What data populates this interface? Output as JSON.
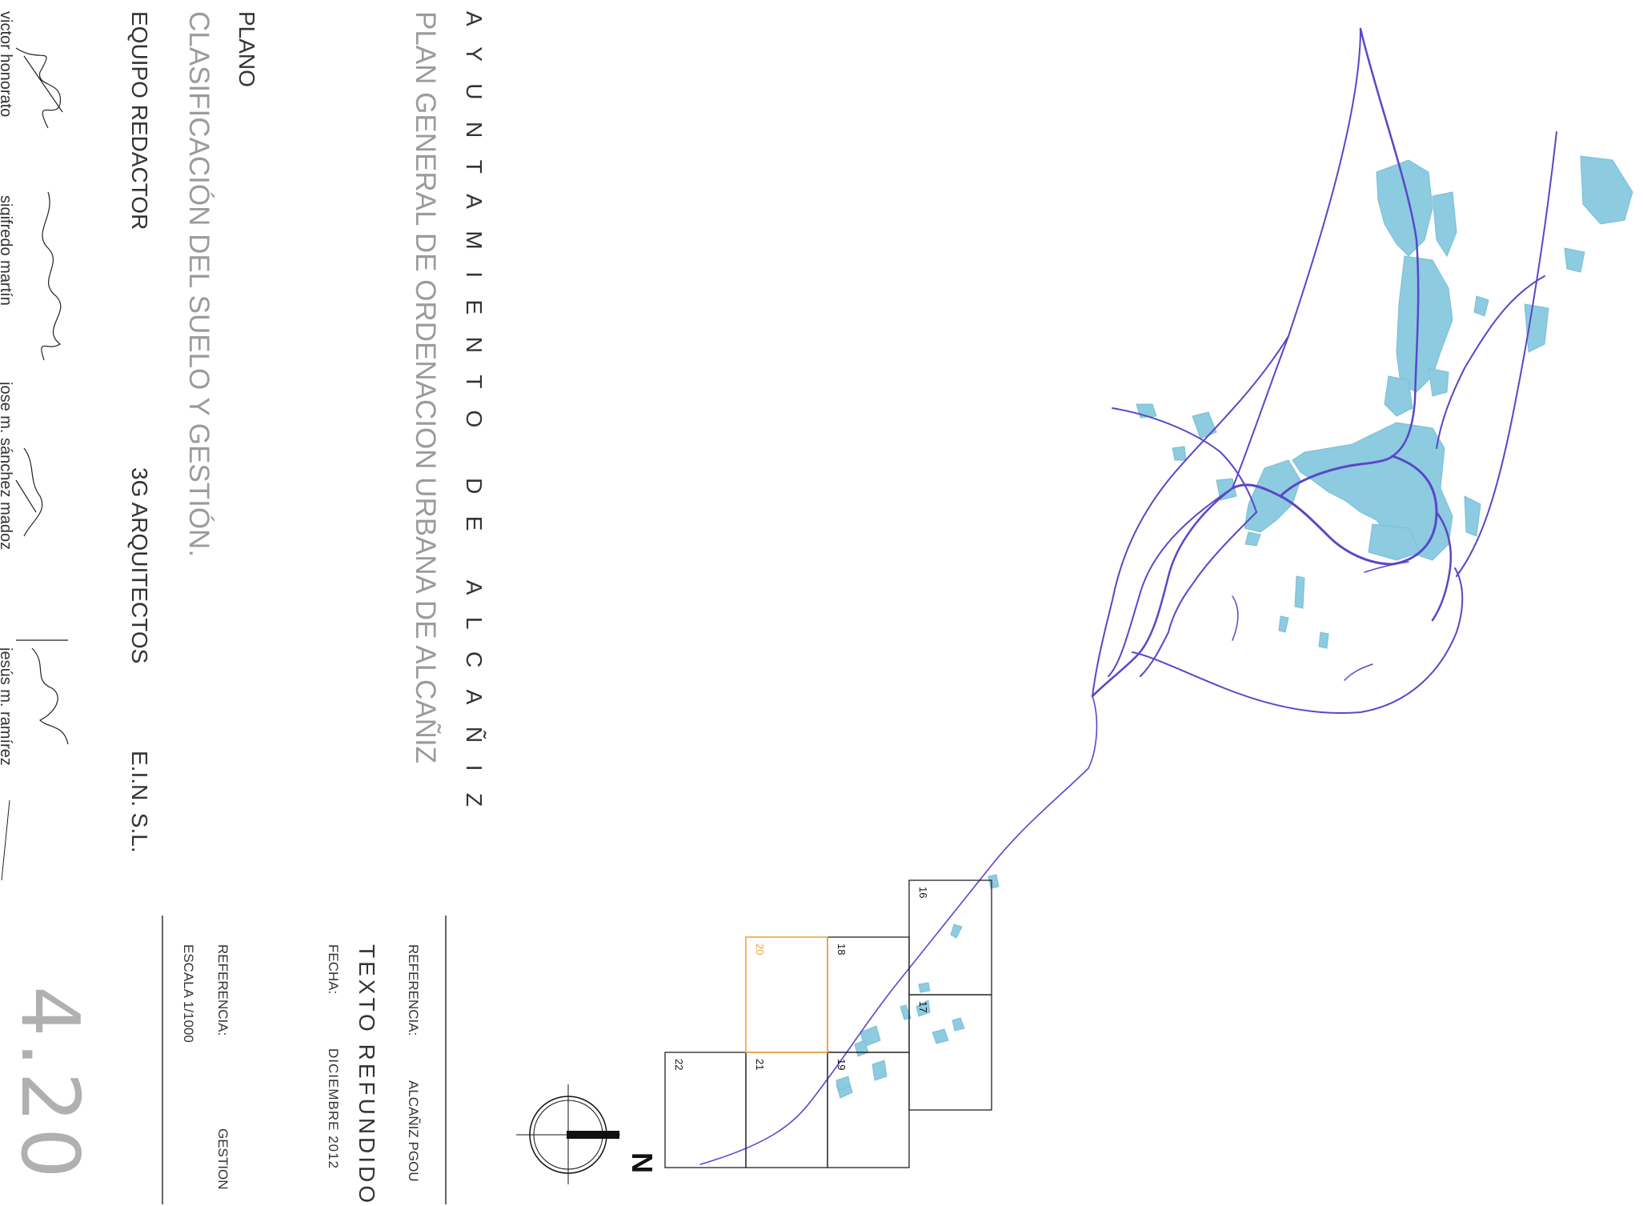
{
  "title_block": {
    "municipality": "AYUNTAMIENTO DE ALCAÑIZ",
    "project": "PLAN GENERAL DE ORDENACION URBANA DE ALCAÑIZ",
    "reference_label": "REFERENCIA:",
    "reference_value": "ALCAÑIZ PGOU",
    "document_type": "TEXTO REFUNDIDO",
    "date_label": "FECHA:",
    "date_value": "DICIEMBRE 2012",
    "plan_label": "PLANO",
    "plan_title": "CLASIFICACIÓN DEL SUELO Y GESTIÓN.",
    "plan_reference_label": "REFERENCIA:",
    "plan_reference_value": "GESTION",
    "scale": "ESCALA 1/1000",
    "plan_number": "4.20",
    "team_label": "EQUIPO REDACTOR",
    "team_name_1": "3G ARQUITECTOS",
    "team_name_2": "E.I.N. S.L."
  },
  "signatories": [
    "victor honorato",
    "sigifredo martín",
    "jose m. sánchez madoz",
    "jesús m. ramírez"
  ],
  "north_arrow": {
    "label": "N",
    "icon": "north-arrow-icon"
  },
  "sheet_index": {
    "sheets": [
      {
        "number": "16",
        "selected": false
      },
      {
        "number": "17",
        "selected": false
      },
      {
        "number": "18",
        "selected": false
      },
      {
        "number": "19",
        "selected": false
      },
      {
        "number": "20",
        "selected": true
      },
      {
        "number": "21",
        "selected": false
      },
      {
        "number": "22",
        "selected": false
      }
    ]
  },
  "colors": {
    "road": "#5a46c8",
    "urban_area": "#8ccbe0",
    "selected_sheet": "#f2a23b",
    "title_gray": "#9b9b9b",
    "text": "#333333"
  }
}
